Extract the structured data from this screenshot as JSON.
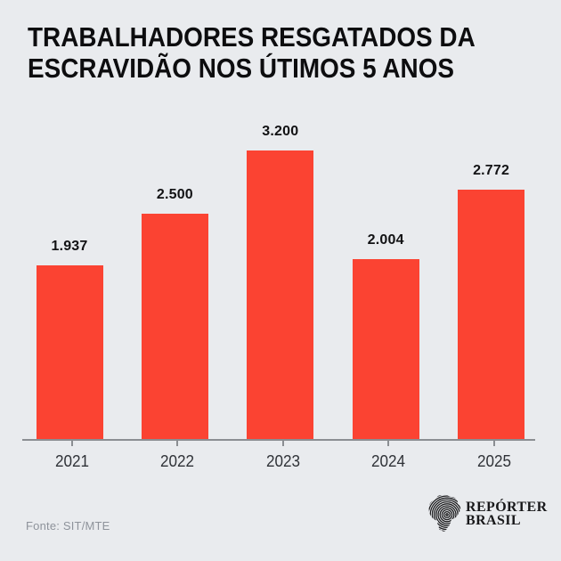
{
  "title": {
    "line1": "TRABALHADORES RESGATADOS DA",
    "line2": "ESCRAVIDÃO NOS ÚTIMOS 5 ANOS"
  },
  "chart_data": {
    "type": "bar",
    "title": "TRABALHADORES RESGATADOS DA ESCRAVIDÃO NOS ÚTIMOS 5 ANOS",
    "categories": [
      "2021",
      "2022",
      "2023",
      "2024",
      "2025"
    ],
    "values": [
      1937,
      2500,
      3200,
      2004,
      2772
    ],
    "value_labels": [
      "1.937",
      "2.500",
      "3.200",
      "2.004",
      "2.772"
    ],
    "xlabel": "",
    "ylabel": "",
    "ylim": [
      0,
      3200
    ],
    "grid": false,
    "legend": "none",
    "bar_color": "#fb4332"
  },
  "footer": {
    "source": "Fonte: SIT/MTE"
  },
  "logo": {
    "name": "Repórter Brasil",
    "line1": "REPÓRTER",
    "line2": "BRASIL",
    "icon": "brazil-fingerprint-icon"
  },
  "colors": {
    "background": "#e9ebee",
    "bar": "#fb4332",
    "title_text": "#0d0d0f",
    "value_text": "#121214",
    "axis": "#8b8e92",
    "year_text": "#2f3237",
    "source_text": "#8e939b",
    "logo_text": "#19191b"
  }
}
